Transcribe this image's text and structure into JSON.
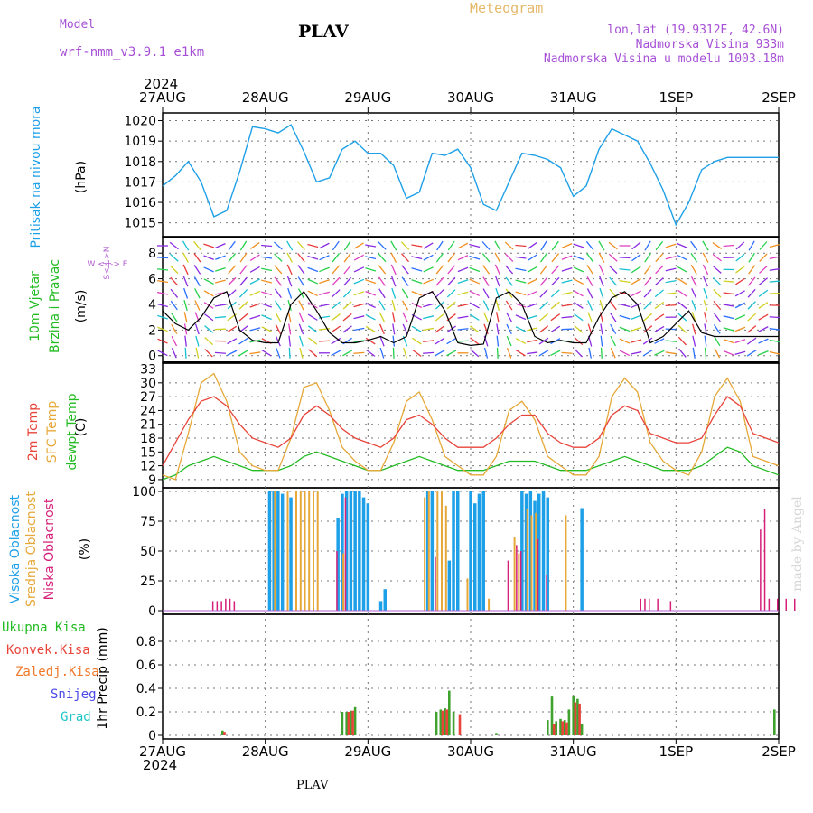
{
  "header": {
    "model_label": "Model",
    "model_value": "wrf-nmm_v3.9.1  e1km",
    "station": "PLAV",
    "meteogram": "Meteogram",
    "lonlat": "lon,lat (19.9312E, 42.6N)",
    "elevation": "Nadmorska Visina 933m",
    "elevation_model": "Nadmorska Visina u modelu 1003.18m"
  },
  "time_axis": {
    "year": "2024",
    "labels": [
      "27AUG",
      "28AUG",
      "29AUG",
      "30AUG",
      "31AUG",
      "1SEP",
      "2SEP"
    ]
  },
  "footer": {
    "station": "PLAV"
  },
  "watermark": "made by Angel",
  "panels": {
    "pressure": {
      "title": "Pritisak na nivou mora",
      "unit": "(hPa)",
      "color": "#1ea0e8"
    },
    "wind": {
      "title_1": "10m Vjetar",
      "title_2": "Brzina i Pravac",
      "unit": "(m/s)",
      "compass": "W  <-|->  E",
      "compass_v": "S<-|->N",
      "color": "#22bb22"
    },
    "temp": {
      "t2m": "2m Temp",
      "sfc": "SFC Temp",
      "dew": "dewpt Temp",
      "unit": "(C)"
    },
    "cloud": {
      "high": "Visoka Oblacnost",
      "mid": "Srednja Oblacnost",
      "low": "Niska Oblacnost",
      "unit": "(%)"
    },
    "precip": {
      "total": "Ukupna Kisa",
      "conv": "Konvek.Kisa",
      "frozen": "Zaledj.Kisa",
      "snow": "Snijeg",
      "hail": "Grad",
      "ylabel": "1hr Precip (mm)"
    }
  },
  "chart_data": [
    {
      "type": "line",
      "title": "Pritisak na nivou mora",
      "ylabel": "(hPa)",
      "x_unit": "hours since 27AUG 00Z",
      "ylim": [
        1014.5,
        1020.2
      ],
      "yticks": [
        1015,
        1016,
        1017,
        1018,
        1019,
        1020
      ],
      "series": [
        {
          "name": "Pritisak na nivou mora",
          "x": [
            0,
            3,
            6,
            9,
            12,
            15,
            18,
            21,
            24,
            27,
            30,
            33,
            36,
            39,
            42,
            45,
            48,
            51,
            54,
            57,
            60,
            63,
            66,
            69,
            72,
            75,
            78,
            81,
            84,
            87,
            90,
            93,
            96,
            99,
            102,
            105,
            108,
            111,
            114,
            117,
            120,
            123,
            126,
            129,
            132,
            135,
            138,
            141,
            144
          ],
          "y": [
            1016.8,
            1017.3,
            1018.0,
            1017.0,
            1015.3,
            1015.6,
            1017.5,
            1019.7,
            1019.6,
            1019.4,
            1019.8,
            1018.5,
            1017.0,
            1017.2,
            1018.6,
            1019.0,
            1018.4,
            1018.4,
            1017.8,
            1016.2,
            1016.5,
            1018.4,
            1018.3,
            1018.6,
            1017.7,
            1015.9,
            1015.6,
            1017.0,
            1018.4,
            1018.3,
            1018.1,
            1017.7,
            1016.3,
            1016.8,
            1018.6,
            1019.6,
            1019.3,
            1019.0,
            1017.9,
            1016.6,
            1014.9,
            1016.0,
            1017.6,
            1018.0,
            1018.2,
            1018.2,
            1018.2,
            1018.2,
            1018.2
          ]
        }
      ]
    },
    {
      "type": "line",
      "title": "10m Vjetar Brzina i Pravac",
      "ylabel": "(m/s)",
      "ylim": [
        -0.3,
        9
      ],
      "yticks": [
        0,
        2,
        4,
        6,
        8
      ],
      "series": [
        {
          "name": "10m Vjetar",
          "x": [
            0,
            3,
            6,
            9,
            12,
            15,
            18,
            21,
            24,
            27,
            30,
            33,
            36,
            39,
            42,
            45,
            48,
            51,
            54,
            57,
            60,
            63,
            66,
            69,
            72,
            75,
            78,
            81,
            84,
            87,
            90,
            93,
            96,
            99,
            102,
            105,
            108,
            111,
            114,
            117,
            120,
            123,
            126,
            129,
            132,
            135,
            138,
            141,
            144
          ],
          "y": [
            3.5,
            2.5,
            2.0,
            3.0,
            4.5,
            5.0,
            2.0,
            1.2,
            1.0,
            1.0,
            4.0,
            5.0,
            3.5,
            1.8,
            1.0,
            1.0,
            1.2,
            1.5,
            1.0,
            1.5,
            4.5,
            5.0,
            3.5,
            1.0,
            0.8,
            0.9,
            4.5,
            5.0,
            4.0,
            1.5,
            1.0,
            1.2,
            1.0,
            1.0,
            3.0,
            4.5,
            5.0,
            4.0,
            1.0,
            1.5,
            2.5,
            3.5,
            1.8,
            1.5,
            1.5,
            1.5,
            1.5,
            1.5,
            1.5
          ]
        }
      ]
    },
    {
      "type": "line",
      "title": "2m Temp / SFC Temp / dewpt Temp",
      "ylabel": "(C)",
      "ylim": [
        8,
        33.5
      ],
      "yticks": [
        9,
        12,
        15,
        18,
        21,
        24,
        27,
        30,
        33
      ],
      "series": [
        {
          "name": "2m Temp",
          "x": [
            0,
            3,
            6,
            9,
            12,
            15,
            18,
            21,
            24,
            27,
            30,
            33,
            36,
            39,
            42,
            45,
            48,
            51,
            54,
            57,
            60,
            63,
            66,
            69,
            72,
            75,
            78,
            81,
            84,
            87,
            90,
            93,
            96,
            99,
            102,
            105,
            108,
            111,
            114,
            117,
            120,
            123,
            126,
            129,
            132,
            135,
            138,
            141,
            144
          ],
          "y": [
            12,
            17,
            22,
            26,
            27,
            25,
            21,
            18,
            17,
            16,
            18,
            23,
            25,
            23,
            20,
            18,
            17,
            16,
            18,
            22,
            23,
            21,
            18,
            16,
            16,
            16,
            18,
            21,
            23,
            23,
            19,
            17,
            16,
            16,
            18,
            23,
            25,
            24,
            19,
            18,
            17,
            17,
            18,
            23,
            27,
            25,
            19,
            18,
            17
          ]
        },
        {
          "name": "SFC Temp",
          "x": [
            0,
            3,
            6,
            9,
            12,
            15,
            18,
            21,
            24,
            27,
            30,
            33,
            36,
            39,
            42,
            45,
            48,
            51,
            54,
            57,
            60,
            63,
            66,
            69,
            72,
            75,
            78,
            81,
            84,
            87,
            90,
            93,
            96,
            99,
            102,
            105,
            108,
            111,
            114,
            117,
            120,
            123,
            126,
            129,
            132,
            135,
            138,
            141,
            144
          ],
          "y": [
            10,
            9,
            19,
            30,
            32,
            26,
            15,
            12,
            11,
            11,
            18,
            29,
            30,
            24,
            16,
            13,
            11,
            11,
            17,
            26,
            28,
            22,
            14,
            12,
            10,
            10,
            14,
            24,
            26,
            22,
            14,
            12,
            10,
            10,
            14,
            27,
            31,
            28,
            17,
            13,
            11,
            10,
            15,
            27,
            31,
            26,
            14,
            13,
            12
          ]
        },
        {
          "name": "dewpt Temp",
          "x": [
            0,
            3,
            6,
            9,
            12,
            15,
            18,
            21,
            24,
            27,
            30,
            33,
            36,
            39,
            42,
            45,
            48,
            51,
            54,
            57,
            60,
            63,
            66,
            69,
            72,
            75,
            78,
            81,
            84,
            87,
            90,
            93,
            96,
            99,
            102,
            105,
            108,
            111,
            114,
            117,
            120,
            123,
            126,
            129,
            132,
            135,
            138,
            141,
            144
          ],
          "y": [
            9,
            10,
            12,
            13,
            14,
            13,
            12,
            11,
            11,
            11,
            12,
            14,
            15,
            14,
            13,
            12,
            11,
            11,
            12,
            13,
            14,
            13,
            12,
            11,
            11,
            11,
            12,
            13,
            13,
            13,
            12,
            11,
            11,
            11,
            12,
            13,
            14,
            13,
            12,
            11,
            11,
            11,
            12,
            14,
            16,
            15,
            12,
            11,
            10
          ]
        }
      ]
    },
    {
      "type": "bar",
      "title": "Visoka / Srednja / Niska Oblacnost",
      "ylabel": "(%)",
      "ylim": [
        0,
        100
      ],
      "yticks": [
        0,
        25,
        50,
        75,
        100
      ],
      "series": [
        {
          "name": "Visoka Oblacnost",
          "x": [
            25,
            26,
            27,
            28,
            30,
            41,
            42,
            43,
            44,
            45,
            46,
            47,
            48,
            51,
            52,
            62,
            63,
            67,
            68,
            69,
            72,
            73,
            74,
            75,
            84,
            85,
            86,
            87,
            88,
            89,
            90,
            98
          ],
          "y": [
            100,
            100,
            100,
            98,
            95,
            78,
            98,
            100,
            100,
            100,
            100,
            95,
            90,
            8,
            18,
            100,
            100,
            42,
            100,
            100,
            100,
            90,
            98,
            100,
            100,
            98,
            100,
            92,
            98,
            100,
            95,
            86
          ]
        },
        {
          "name": "Srednja Oblacnost",
          "x": [
            26,
            29,
            31,
            32,
            33,
            34,
            35,
            36,
            42,
            61,
            62,
            64,
            65,
            66,
            71,
            76,
            82,
            83,
            85,
            86,
            87,
            94
          ],
          "y": [
            100,
            100,
            100,
            100,
            100,
            100,
            100,
            100,
            48,
            95,
            100,
            100,
            100,
            88,
            27,
            10,
            62,
            48,
            85,
            80,
            82,
            80
          ]
        },
        {
          "name": "Niska Oblacnost",
          "x": [
            12,
            13,
            14,
            15,
            16,
            17,
            41,
            43,
            64,
            81,
            83,
            84,
            88,
            90,
            112,
            113,
            114,
            116,
            119,
            140,
            141,
            142,
            144,
            146,
            148
          ],
          "y": [
            8,
            8,
            8,
            10,
            10,
            8,
            50,
            95,
            45,
            42,
            55,
            50,
            60,
            30,
            10,
            10,
            10,
            10,
            8,
            68,
            85,
            10,
            10,
            10,
            10
          ]
        }
      ]
    },
    {
      "type": "bar",
      "title": "1hr Precip",
      "ylabel": "1hr Precip (mm)",
      "ylim": [
        0,
        1
      ],
      "yticks": [
        0,
        0.2,
        0.4,
        0.6,
        0.8
      ],
      "series": [
        {
          "name": "Ukupna Kisa",
          "x": [
            14,
            42,
            43,
            44,
            45,
            64,
            65,
            66,
            67,
            68,
            78,
            90,
            91,
            92,
            93,
            94,
            95,
            96,
            97,
            98,
            143
          ],
          "y": [
            0.04,
            0.2,
            0.2,
            0.21,
            0.24,
            0.2,
            0.22,
            0.23,
            0.38,
            0.2,
            0.02,
            0.13,
            0.33,
            0.12,
            0.14,
            0.13,
            0.22,
            0.34,
            0.31,
            0.1,
            0.22
          ]
        },
        {
          "name": "Konvek.Kisa",
          "x": [
            14,
            43,
            44,
            65,
            66,
            69,
            91,
            93,
            94,
            96,
            97
          ],
          "y": [
            0.03,
            0.2,
            0.21,
            0.21,
            0.22,
            0.18,
            0.1,
            0.12,
            0.11,
            0.28,
            0.27
          ]
        }
      ]
    }
  ]
}
